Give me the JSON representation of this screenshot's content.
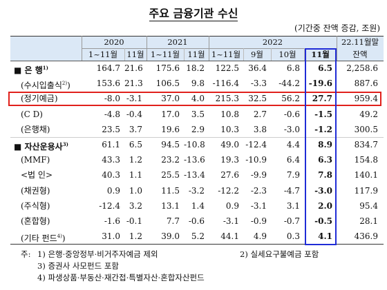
{
  "title": "주요 금융기관 수신",
  "unit": "(기간중 잔액 증감, 조원)",
  "table": {
    "years": [
      "2020",
      "2021",
      "2022"
    ],
    "balance_header": [
      "22.11월말",
      "잔액"
    ],
    "subheaders": [
      "1~11월",
      "11월",
      "1~11월",
      "11월",
      "1~11월",
      "9월",
      "10월",
      "11월"
    ],
    "rows": [
      {
        "label": "■ 은 행",
        "note": "1)",
        "values": [
          "164.7",
          "21.6",
          "175.6",
          "18.2",
          "122.5",
          "36.4",
          "6.8",
          "6.5",
          "2,258.6"
        ]
      },
      {
        "label": "(수시입출식",
        "note": "2)",
        "tail": ")",
        "values": [
          "153.6",
          "21.3",
          "106.5",
          "9.8",
          "-116.4",
          "-3.3",
          "-44.2",
          "-19.6",
          "887.6"
        ]
      },
      {
        "label": "(정기예금)",
        "values": [
          "-8.0",
          "-3.1",
          "37.0",
          "4.0",
          "215.3",
          "32.5",
          "56.2",
          "27.7",
          "959.4"
        ]
      },
      {
        "label": "(C D)",
        "values": [
          "-4.8",
          "-0.4",
          "17.0",
          "3.5",
          "10.8",
          "2.7",
          "-0.6",
          "-1.5",
          "49.2"
        ]
      },
      {
        "label": "(은행채)",
        "values": [
          "23.5",
          "3.7",
          "19.6",
          "2.9",
          "10.3",
          "3.8",
          "-3.0",
          "-1.2",
          "300.5"
        ]
      },
      {
        "label": "■ 자산운용사",
        "note": "3)",
        "values": [
          "61.1",
          "6.5",
          "94.5",
          "-10.8",
          "49.0",
          "-12.4",
          "4.4",
          "8.9",
          "834.7"
        ]
      },
      {
        "label": "(MMF)",
        "values": [
          "43.3",
          "1.2",
          "23.2",
          "-13.6",
          "19.3",
          "-10.9",
          "6.4",
          "6.3",
          "154.8"
        ]
      },
      {
        "label": "<법 인>",
        "values": [
          "40.3",
          "1.1",
          "25.5",
          "-13.4",
          "27.6",
          "-9.9",
          "7.9",
          "7.8",
          "140.1"
        ]
      },
      {
        "label": "(채권형)",
        "values": [
          "0.9",
          "1.0",
          "11.5",
          "-3.2",
          "-12.2",
          "-2.3",
          "-4.7",
          "-3.0",
          "117.9"
        ]
      },
      {
        "label": "(주식형)",
        "values": [
          "-12.4",
          "3.2",
          "13.1",
          "1.4",
          "0.9",
          "-3.1",
          "3.1",
          "2.0",
          "95.4"
        ]
      },
      {
        "label": "(혼합형)",
        "values": [
          "-1.6",
          "-0.1",
          "7.7",
          "-0.6",
          "-3.1",
          "-0.9",
          "-0.7",
          "-0.5",
          "28.1"
        ]
      },
      {
        "label": "(기타 펀드",
        "note": "4)",
        "tail": ")",
        "values": [
          "31.0",
          "1.2",
          "39.0",
          "5.2",
          "44.1",
          "4.9",
          "0.3",
          "4.1",
          "436.9"
        ]
      }
    ]
  },
  "footnotes": {
    "prefix": "주:",
    "items": [
      "1) 은행·중앙정부·비거주자예금 제외",
      "2) 실세요구불예금 포함",
      "3) 증권사 사모펀드 포함",
      "4) 파생상품·부동산·재간접·특별자산·혼합자산펀드"
    ]
  }
}
